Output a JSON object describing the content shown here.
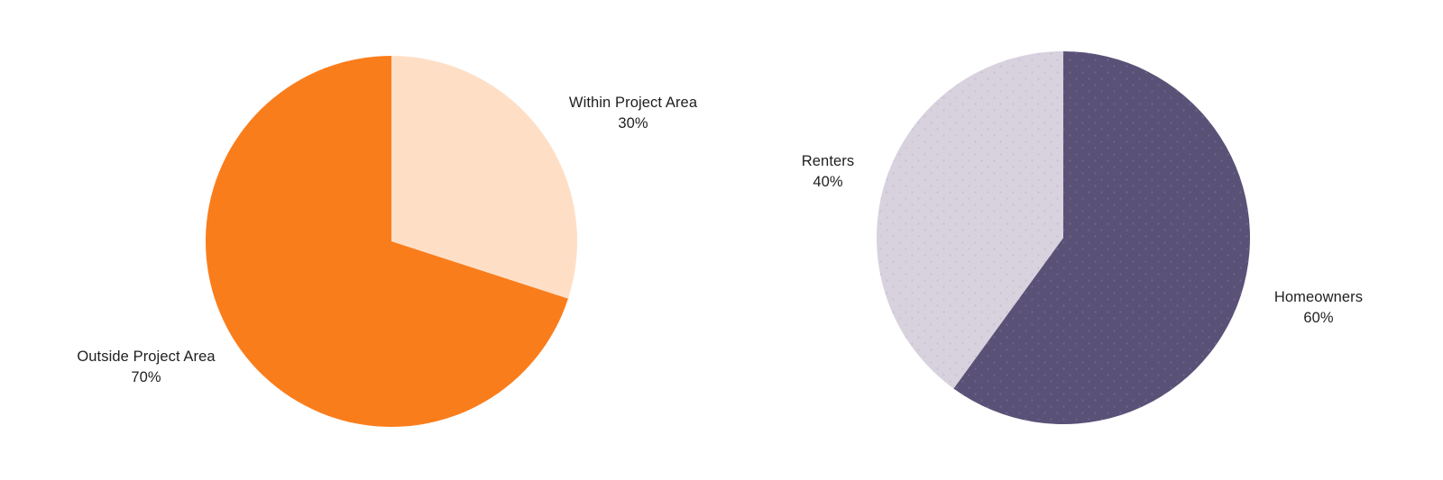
{
  "page": {
    "background": "#FFFFFF",
    "text_color": "#1F1F1F"
  },
  "chart_data": [
    {
      "type": "pie",
      "title": "",
      "legend_position": "none",
      "labels_position": "outside",
      "start_angle_deg": 0,
      "direction": "clockwise",
      "categories": [
        "Within Project Area",
        "Outside Project Area"
      ],
      "values": [
        30,
        70
      ],
      "slices": [
        {
          "label": "Within Project Area",
          "pct_label": "30%",
          "value": 30,
          "color": "#FEDFC6"
        },
        {
          "label": "Outside Project Area",
          "pct_label": "70%",
          "value": 70,
          "color": "#FA7D1C"
        }
      ]
    },
    {
      "type": "pie",
      "title": "",
      "legend_position": "none",
      "labels_position": "outside",
      "start_angle_deg": 0,
      "direction": "clockwise",
      "categories": [
        "Homeowners",
        "Renters"
      ],
      "values": [
        60,
        40
      ],
      "slices": [
        {
          "label": "Homeowners",
          "pct_label": "60%",
          "value": 60,
          "color": "#5A5177",
          "texture": "dots",
          "dot_color": "#6E6390"
        },
        {
          "label": "Renters",
          "pct_label": "40%",
          "value": 40,
          "color": "#D8D2DE",
          "texture": "dots",
          "dot_color": "#C9BFD4"
        }
      ]
    }
  ]
}
